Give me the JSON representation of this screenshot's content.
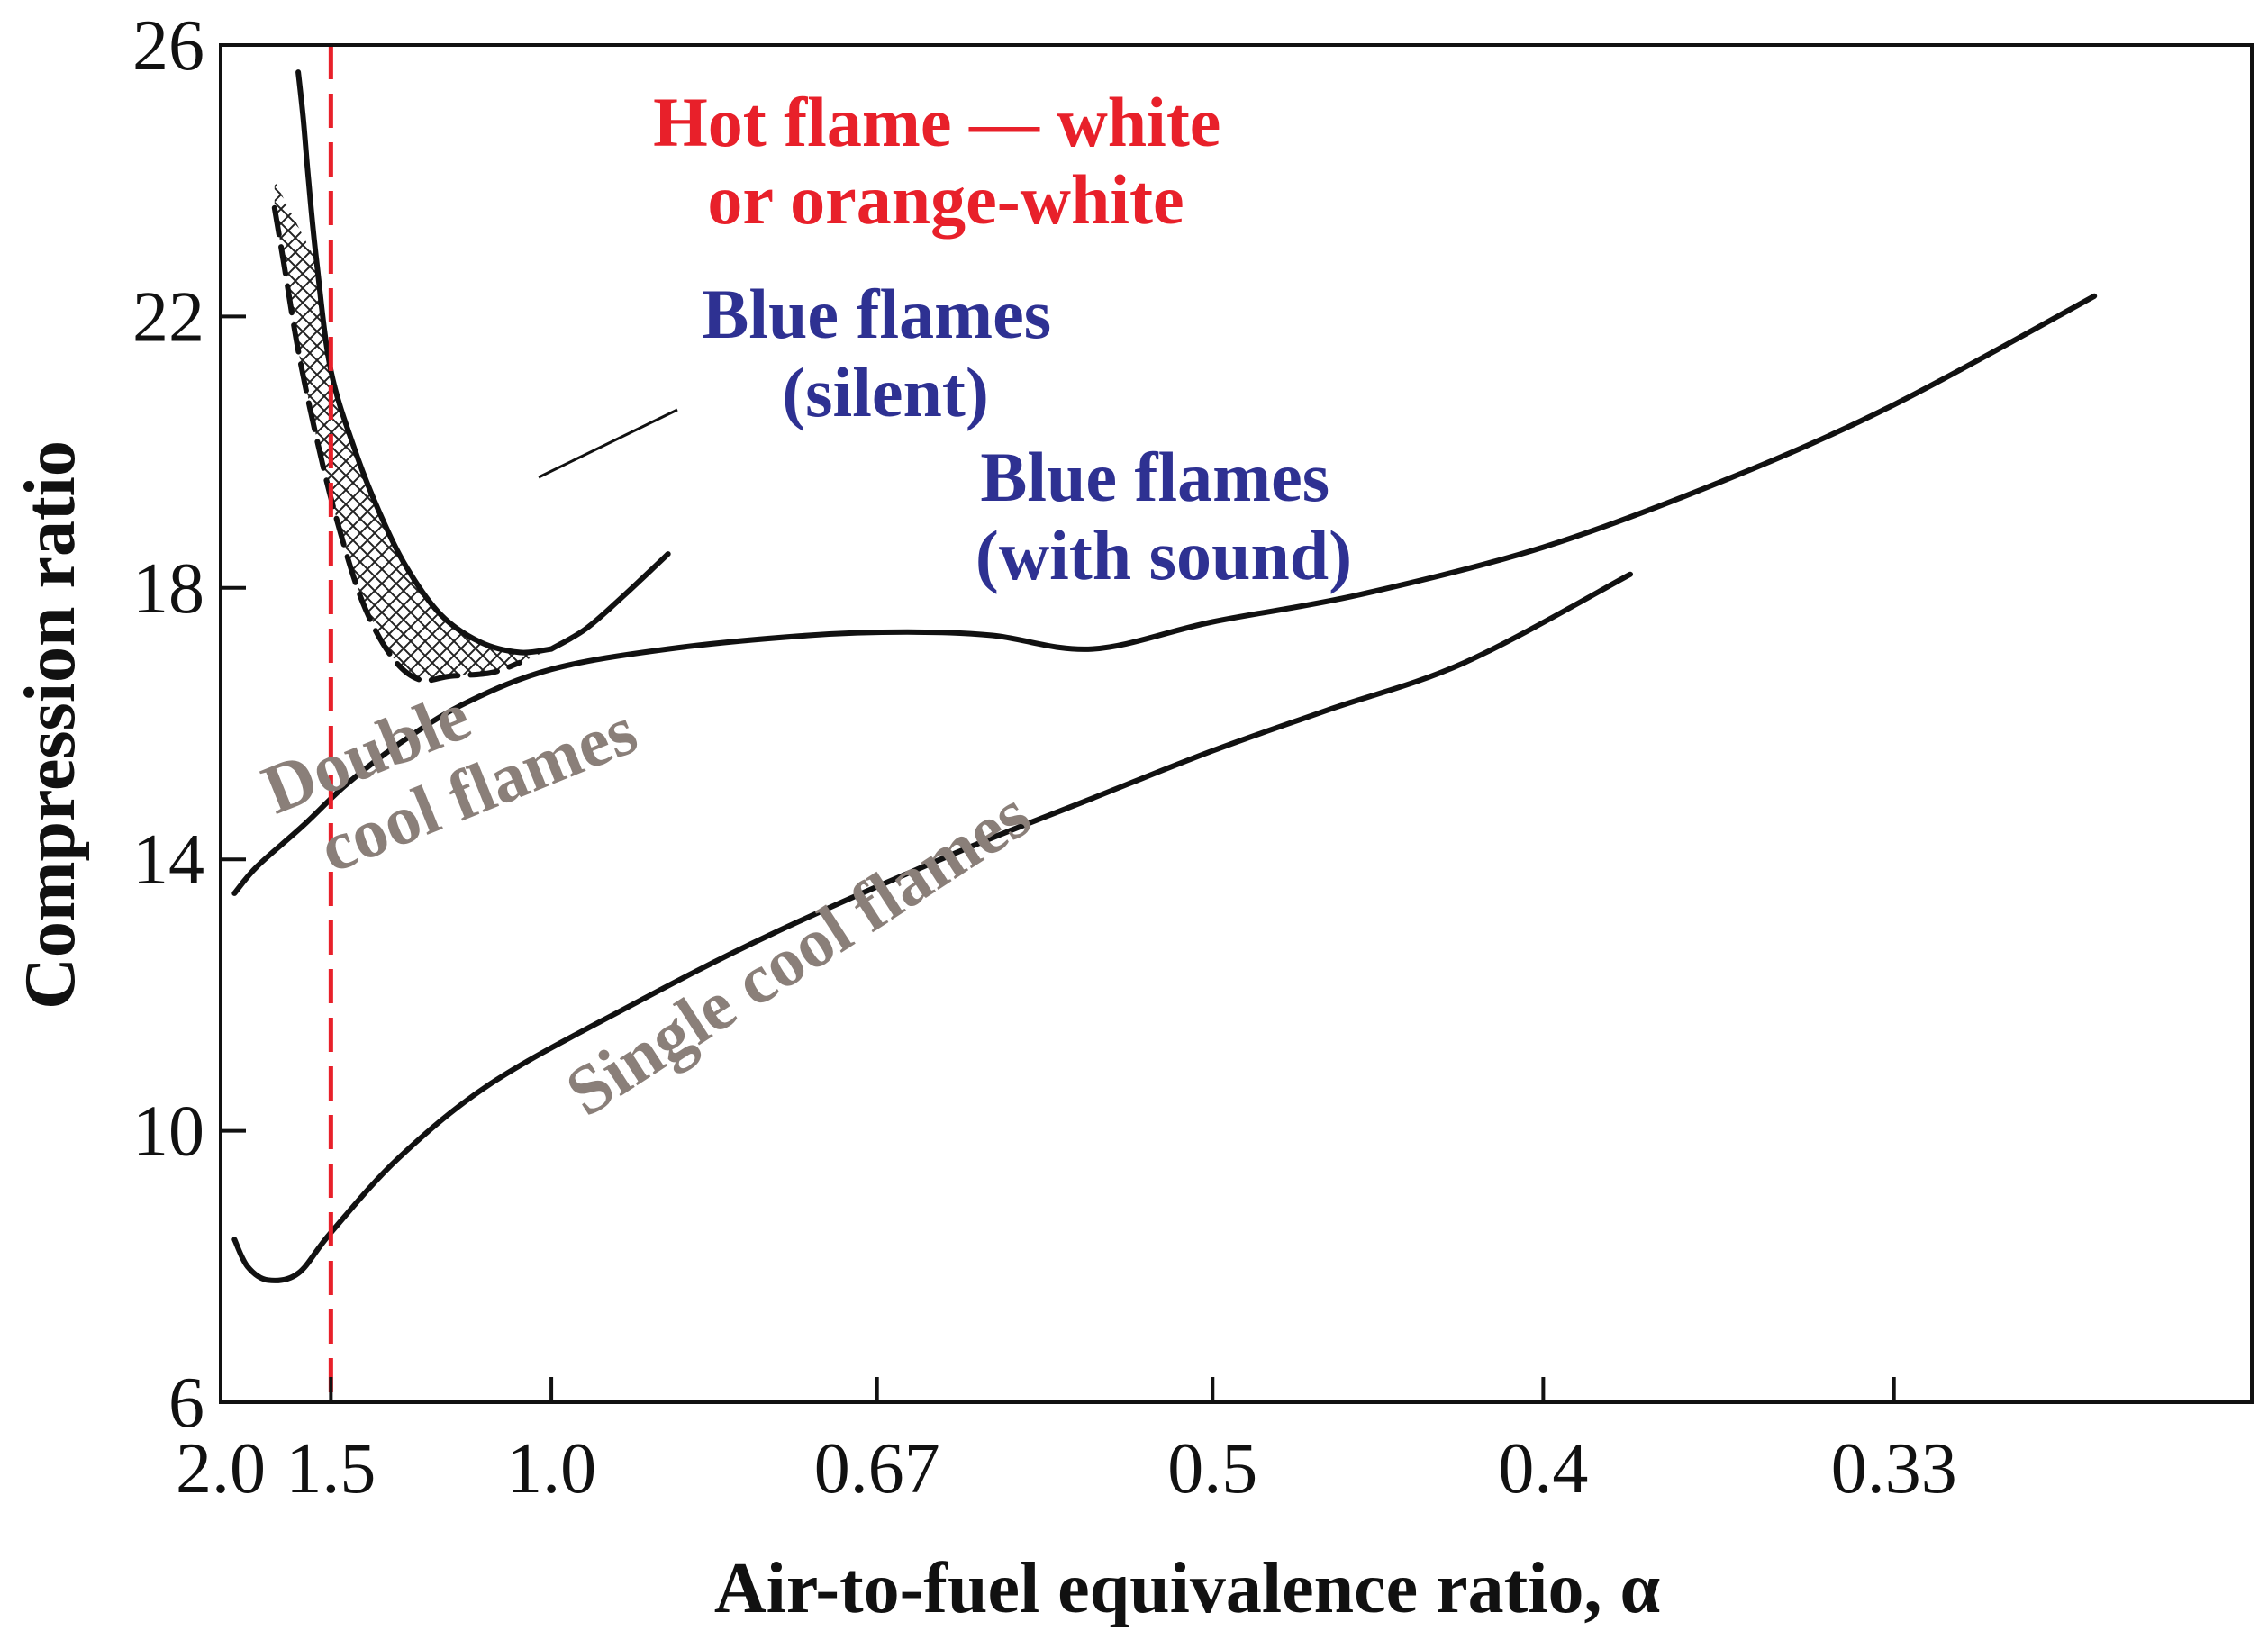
{
  "chart_data": {
    "type": "line",
    "title": "",
    "xlabel": "Air-to-fuel equivalence ratio, α",
    "ylabel": "Compression ratio",
    "x_scale": "reciprocal",
    "xlim": [
      2.0,
      0.28
    ],
    "ylim": [
      6,
      26
    ],
    "x_ticks": [
      2.0,
      1.5,
      1.0,
      0.67,
      0.5,
      0.4,
      0.33
    ],
    "x_tick_labels": [
      "2.0",
      "1.5",
      "1.0",
      "0.67",
      "0.5",
      "0.4",
      "0.33"
    ],
    "y_ticks": [
      6,
      10,
      14,
      18,
      22,
      26
    ],
    "y_tick_labels": [
      "6",
      "10",
      "14",
      "18",
      "22",
      "26"
    ],
    "grid": false,
    "reference_line": {
      "x": 1.5,
      "color": "#e8202a",
      "style": "dashed"
    },
    "colors": {
      "hot": "#e8202a",
      "blue": "#2e3192",
      "cool": "#8a7f79",
      "line": "#111111"
    },
    "series": [
      {
        "x": [
          1.92,
          1.8,
          1.6,
          1.45,
          1.3,
          1.15,
          1.0,
          0.85,
          0.72,
          0.65,
          0.6,
          0.55,
          0.5,
          0.45,
          0.4,
          0.36,
          0.33,
          0.3
        ],
        "y": [
          13.5,
          13.9,
          14.5,
          15.1,
          15.7,
          16.3,
          16.8,
          17.1,
          17.3,
          17.35,
          17.3,
          17.1,
          17.5,
          17.9,
          18.6,
          19.6,
          20.7,
          22.3
        ]
      },
      {
        "x": [
          1.92,
          1.85,
          1.75,
          1.62,
          1.5,
          1.3,
          1.1,
          0.9,
          0.75,
          0.62,
          0.55,
          0.5,
          0.46,
          0.42,
          0.38
        ],
        "y": [
          8.4,
          8.0,
          7.8,
          7.9,
          8.5,
          9.6,
          10.7,
          11.8,
          12.9,
          14.1,
          14.9,
          15.6,
          16.2,
          16.9,
          18.2
        ]
      },
      {
        "x": [
          1.62,
          1.6,
          1.58,
          1.55,
          1.5,
          1.42,
          1.35,
          1.28,
          1.2,
          1.12,
          1.05,
          1.0
        ],
        "y": [
          25.6,
          24.9,
          24.0,
          22.8,
          21.2,
          20.0,
          19.1,
          18.3,
          17.6,
          17.2,
          17.05,
          17.1
        ]
      },
      {
        "x": [
          1.0,
          0.95,
          0.9,
          0.85
        ],
        "y": [
          17.1,
          17.4,
          17.9,
          18.5
        ]
      },
      {
        "x": [
          1.72,
          1.68,
          1.62,
          1.55,
          1.48,
          1.4,
          1.32,
          1.25,
          1.18,
          1.1,
          1.05
        ],
        "y": [
          23.6,
          22.8,
          21.5,
          20.2,
          19.0,
          17.8,
          17.0,
          16.65,
          16.7,
          16.75,
          16.9
        ]
      }
    ],
    "annotations": [
      {
        "lines": [
          "Hot flame — white",
          "or orange-white"
        ],
        "color": "hot"
      },
      {
        "lines": [
          "Blue flames",
          "(silent)"
        ],
        "color": "blue"
      },
      {
        "lines": [
          "Blue flames",
          "(with sound)"
        ],
        "color": "blue"
      },
      {
        "lines": [
          "Double",
          "cool flames"
        ],
        "color": "cool"
      },
      {
        "lines": [
          "Single cool flames"
        ],
        "color": "cool"
      }
    ]
  }
}
